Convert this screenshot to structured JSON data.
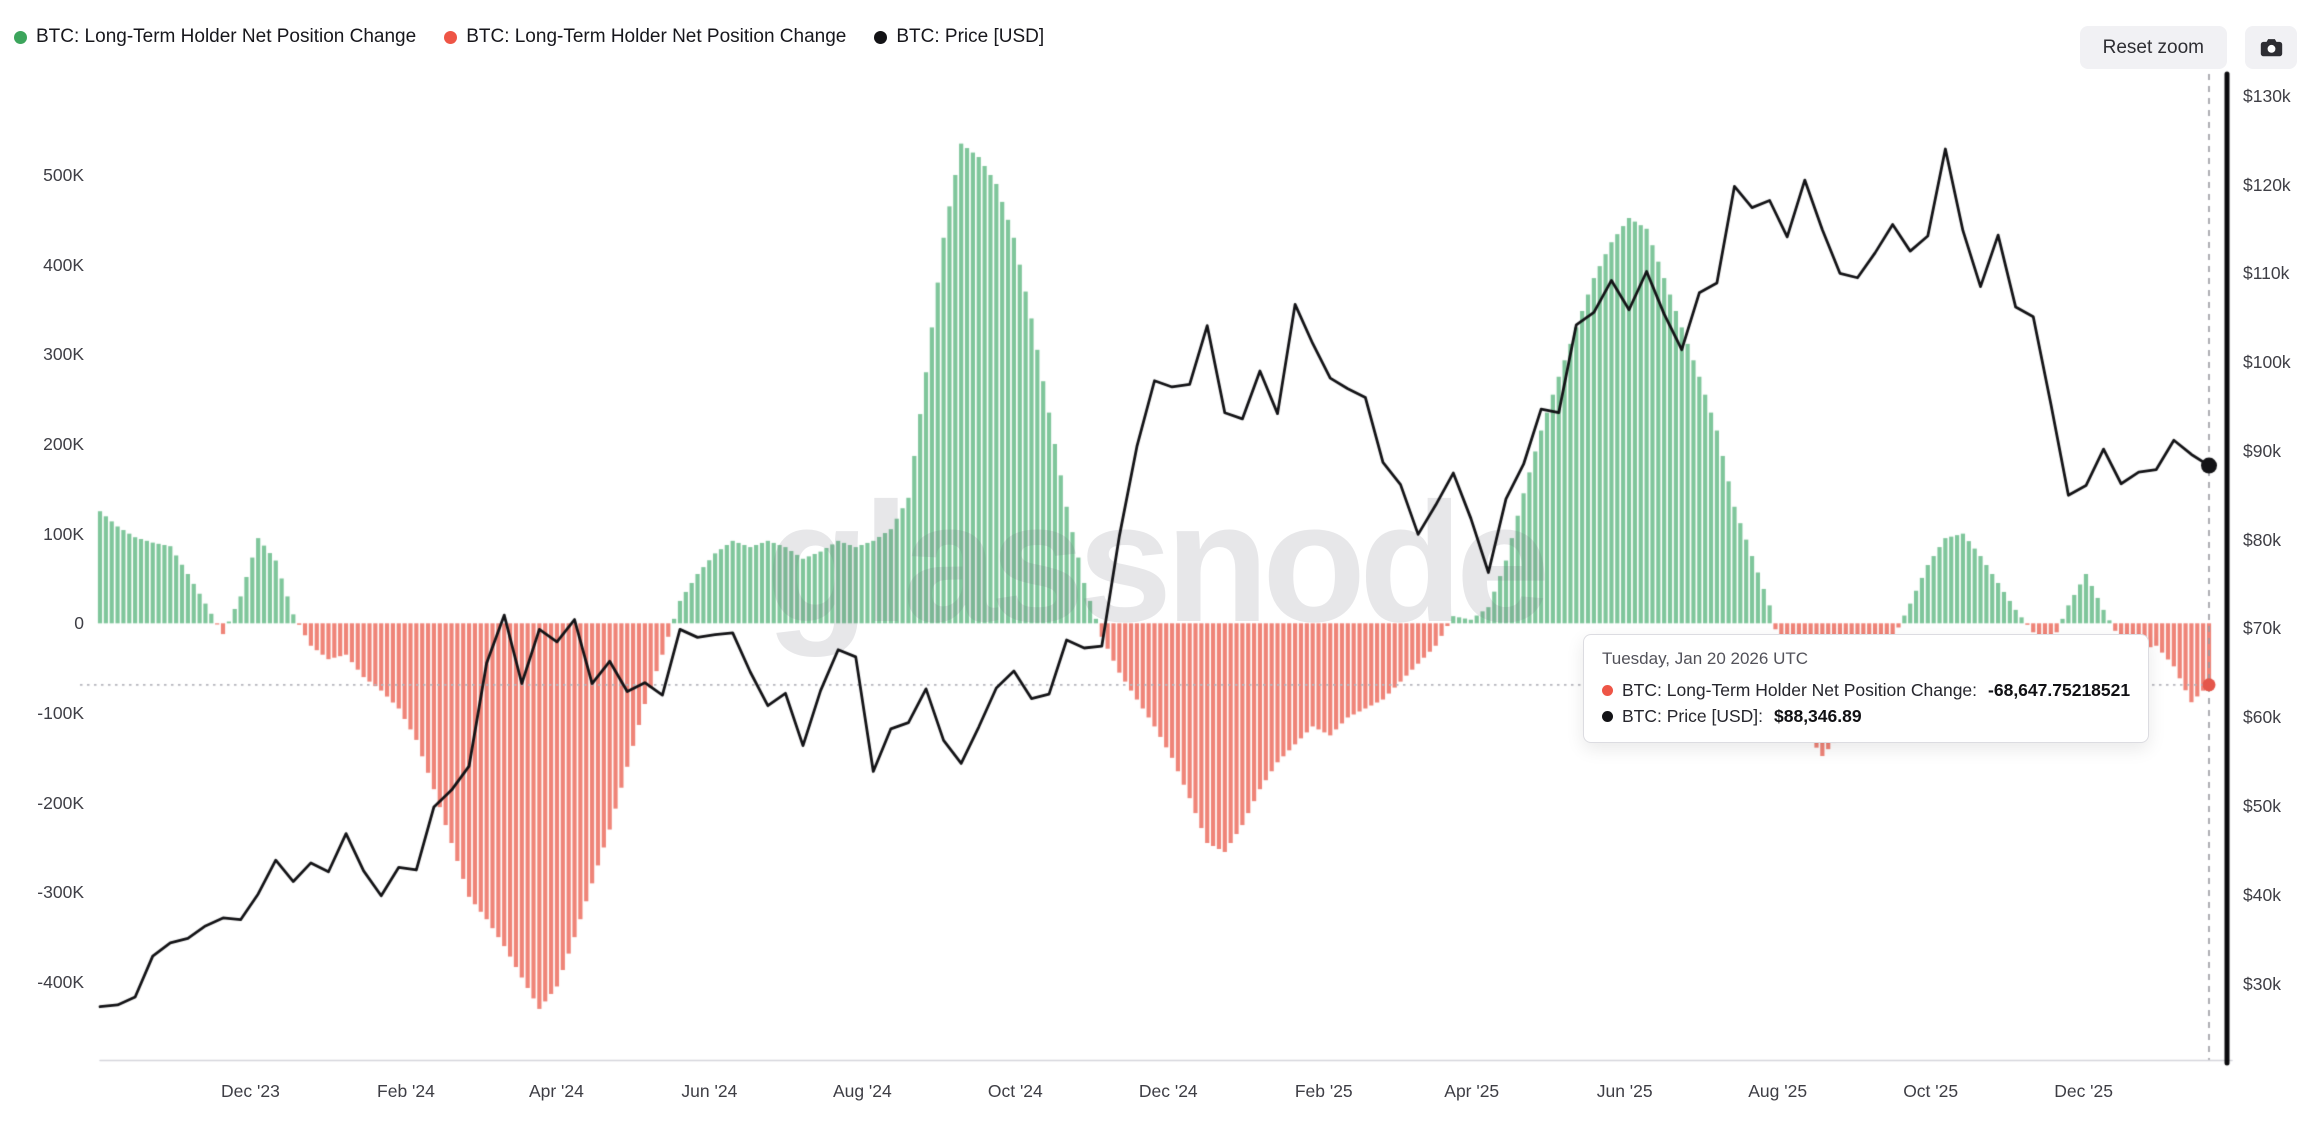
{
  "toolbar": {
    "legend": [
      {
        "label": "BTC: Long-Term Holder Net Position Change",
        "color": "#3ca55c"
      },
      {
        "label": "BTC: Long-Term Holder Net Position Change",
        "color": "#ee5546"
      },
      {
        "label": "BTC: Price [USD]",
        "color": "#131316"
      }
    ],
    "reset_zoom_label": "Reset zoom",
    "camera_icon": "camera-icon"
  },
  "watermark": "glassnode",
  "tooltip": {
    "title": "Tuesday, Jan 20 2026 UTC",
    "rows": [
      {
        "dot_color": "#ee5546",
        "label": "BTC: Long-Term Holder Net Position Change:",
        "value": "-68,647.75218521"
      },
      {
        "dot_color": "#131316",
        "label": "BTC: Price [USD]:",
        "value": "$88,346.89"
      }
    ]
  },
  "chart_data": {
    "type": "bar",
    "subtype": "combo-bar-line-dual-axis",
    "x": {
      "start_date": "2023-10-02",
      "end_date": "2026-01-20",
      "points": 121,
      "interval_days": 7
    },
    "series": [
      {
        "name": "BTC: Long-Term Holder Net Position Change",
        "type": "bar",
        "axis": "left",
        "color_positive": "#7fc69b",
        "color_negative": "#ef8478",
        "values": [
          125000,
          108000,
          96000,
          90000,
          86000,
          55000,
          22000,
          -12000,
          30000,
          95000,
          70000,
          10000,
          -25000,
          -40000,
          -35000,
          -60000,
          -75000,
          -95000,
          -130000,
          -185000,
          -245000,
          -305000,
          -330000,
          -360000,
          -395000,
          -430000,
          -405000,
          -350000,
          -290000,
          -230000,
          -160000,
          -90000,
          -35000,
          25000,
          55000,
          78000,
          92000,
          85000,
          92000,
          85000,
          72000,
          80000,
          92000,
          85000,
          92000,
          105000,
          140000,
          280000,
          430000,
          535000,
          520000,
          490000,
          430000,
          340000,
          235000,
          130000,
          45000,
          -15000,
          -55000,
          -85000,
          -115000,
          -150000,
          -195000,
          -245000,
          -255000,
          -225000,
          -185000,
          -155000,
          -135000,
          -115000,
          -125000,
          -105000,
          -95000,
          -85000,
          -65000,
          -45000,
          -25000,
          8000,
          4000,
          18000,
          70000,
          145000,
          215000,
          275000,
          330000,
          385000,
          425000,
          452000,
          440000,
          385000,
          330000,
          275000,
          215000,
          130000,
          75000,
          20000,
          -60000,
          -120000,
          -148000,
          -125000,
          -95000,
          -55000,
          -18000,
          22000,
          65000,
          95000,
          100000,
          75000,
          45000,
          15000,
          -10000,
          -25000,
          20000,
          55000,
          15000,
          -20000,
          -30000,
          -25000,
          -48000,
          -88000,
          -68647.75218521
        ]
      },
      {
        "name": "BTC: Price [USD]",
        "type": "line",
        "axis": "right",
        "color": "#131316",
        "values": [
          27400,
          27600,
          28500,
          33100,
          34600,
          35100,
          36500,
          37400,
          37200,
          40100,
          43900,
          41500,
          43600,
          42600,
          46900,
          42700,
          39900,
          43100,
          42800,
          49900,
          51800,
          54500,
          66100,
          71500,
          63800,
          69900,
          68500,
          71000,
          63800,
          66300,
          62900,
          63900,
          62500,
          69900,
          69000,
          69300,
          69500,
          65100,
          61300,
          62700,
          56800,
          63000,
          67600,
          66800,
          53900,
          58700,
          59400,
          63200,
          57400,
          54800,
          58900,
          63300,
          65200,
          62100,
          62600,
          68700,
          67800,
          68000,
          80400,
          90500,
          97900,
          97200,
          97500,
          104100,
          94300,
          93600,
          99000,
          94200,
          106500,
          102100,
          98200,
          97000,
          96000,
          88700,
          86200,
          80600,
          83900,
          87500,
          82400,
          76300,
          84600,
          88500,
          94700,
          94300,
          104200,
          105600,
          109200,
          105900,
          110200,
          105400,
          101400,
          107800,
          108900,
          119800,
          117400,
          118200,
          114100,
          120500,
          114900,
          110000,
          109500,
          112300,
          115500,
          112500,
          114200,
          124000,
          114800,
          108500,
          114300,
          106200,
          105100,
          95300,
          85000,
          86100,
          90200,
          86300,
          87600,
          87900,
          91200,
          89600,
          88346.89
        ]
      }
    ],
    "left_axis": {
      "min": -487000,
      "max": 597000,
      "ticks": [
        {
          "label": "500K",
          "value": 500000
        },
        {
          "label": "400K",
          "value": 400000
        },
        {
          "label": "300K",
          "value": 300000
        },
        {
          "label": "200K",
          "value": 200000
        },
        {
          "label": "100K",
          "value": 100000
        },
        {
          "label": "0",
          "value": 0
        },
        {
          "label": "-100K",
          "value": -100000
        },
        {
          "label": "-200K",
          "value": -200000
        },
        {
          "label": "-300K",
          "value": -300000
        },
        {
          "label": "-400K",
          "value": -400000
        }
      ]
    },
    "right_axis": {
      "min": 21400,
      "max": 130870,
      "ticks": [
        {
          "label": "$130k",
          "value": 130000
        },
        {
          "label": "$120k",
          "value": 120000
        },
        {
          "label": "$110k",
          "value": 110000
        },
        {
          "label": "$100k",
          "value": 100000
        },
        {
          "label": "$90k",
          "value": 90000
        },
        {
          "label": "$80k",
          "value": 80000
        },
        {
          "label": "$70k",
          "value": 70000
        },
        {
          "label": "$60k",
          "value": 60000
        },
        {
          "label": "$50k",
          "value": 50000
        },
        {
          "label": "$40k",
          "value": 40000
        },
        {
          "label": "$30k",
          "value": 30000
        }
      ]
    },
    "x_axis": {
      "ticks": [
        {
          "label": "Dec '23",
          "date": "2023-12-01"
        },
        {
          "label": "Feb '24",
          "date": "2024-02-01"
        },
        {
          "label": "Apr '24",
          "date": "2024-04-01"
        },
        {
          "label": "Jun '24",
          "date": "2024-06-01"
        },
        {
          "label": "Aug '24",
          "date": "2024-08-01"
        },
        {
          "label": "Oct '24",
          "date": "2024-10-01"
        },
        {
          "label": "Dec '24",
          "date": "2024-12-01"
        },
        {
          "label": "Feb '25",
          "date": "2025-02-01"
        },
        {
          "label": "Apr '25",
          "date": "2025-04-01"
        },
        {
          "label": "Jun '25",
          "date": "2025-06-01"
        },
        {
          "label": "Aug '25",
          "date": "2025-08-01"
        },
        {
          "label": "Oct '25",
          "date": "2025-10-01"
        },
        {
          "label": "Dec '25",
          "date": "2025-12-01"
        }
      ]
    },
    "crosshair": {
      "x_date": "2026-01-20",
      "bar_value": -68647.75218521,
      "price_value": 88346.89,
      "bar_dot_color": "#e4564a",
      "price_dot_color": "#131316"
    },
    "grid": false,
    "legend_position": "top-left"
  }
}
